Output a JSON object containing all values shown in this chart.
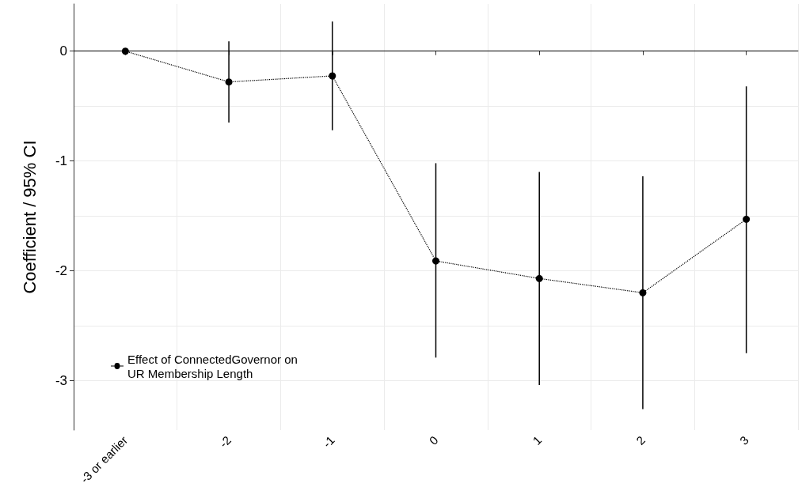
{
  "chart_data": {
    "type": "line",
    "ylabel": "Coefficient / 95% CI",
    "categories": [
      "-3 or earlier",
      "-2",
      "-1",
      "0",
      "1",
      "2",
      "3"
    ],
    "series": [
      {
        "name": "Effect of ConnectedGovernor on UR Membership Length",
        "color": "#000000",
        "values": [
          0,
          -0.28,
          -0.225,
          -1.91,
          -2.07,
          -2.2,
          -1.53
        ],
        "errors": [
          null,
          [
            -0.65,
            0.09
          ],
          [
            -0.72,
            0.27
          ],
          [
            -2.79,
            -1.02
          ],
          [
            -3.04,
            -1.1
          ],
          [
            -3.26,
            -1.14
          ],
          [
            -2.75,
            -0.32
          ]
        ]
      }
    ],
    "ylim": [
      -3.45,
      0.43
    ],
    "yticks": [
      -3,
      -2,
      -1,
      0
    ],
    "ref_lines": [
      {
        "axis": "y",
        "value": 0,
        "color": "#000000",
        "line_style": "solid"
      }
    ],
    "grid": true,
    "legend": "bottom left",
    "marker": "circle",
    "line_style": "dotted"
  }
}
